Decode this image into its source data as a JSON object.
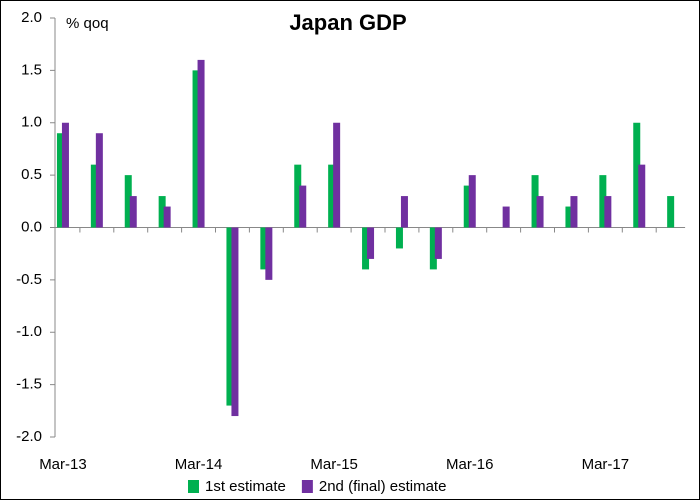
{
  "chart_data": {
    "type": "bar",
    "title": "Japan GDP",
    "y_label": "% qoq",
    "categories": [
      "Mar-13",
      null,
      null,
      null,
      "Mar-14",
      null,
      null,
      null,
      "Mar-15",
      null,
      null,
      null,
      "Mar-16",
      null,
      null,
      null,
      "Mar-17",
      null,
      null
    ],
    "series": [
      {
        "name": "1st estimate",
        "color": "#00b050",
        "values": [
          0.9,
          0.6,
          0.5,
          0.3,
          1.5,
          -1.7,
          -0.4,
          0.6,
          0.6,
          -0.4,
          -0.2,
          -0.4,
          0.4,
          0.0,
          0.5,
          0.2,
          0.5,
          1.0,
          0.3
        ]
      },
      {
        "name": "2nd (final) estimate",
        "color": "#7030a0",
        "values": [
          1.0,
          0.9,
          0.3,
          0.2,
          1.6,
          -1.8,
          -0.5,
          0.4,
          1.0,
          -0.3,
          0.3,
          -0.3,
          0.5,
          0.2,
          0.3,
          0.3,
          0.3,
          0.6,
          null
        ]
      }
    ],
    "ylim": [
      -2,
      2
    ],
    "yticks": [
      {
        "value": -2,
        "label": "-2.0"
      },
      -1.5,
      {
        "value": -1,
        "label": "-1.0"
      },
      -0.5,
      {
        "value": 0,
        "label": "0.0"
      },
      0.5,
      {
        "value": 1,
        "label": "1.0"
      },
      1.5,
      {
        "value": 2,
        "label": "2.0"
      }
    ],
    "legend": "bottom",
    "grid": false
  }
}
